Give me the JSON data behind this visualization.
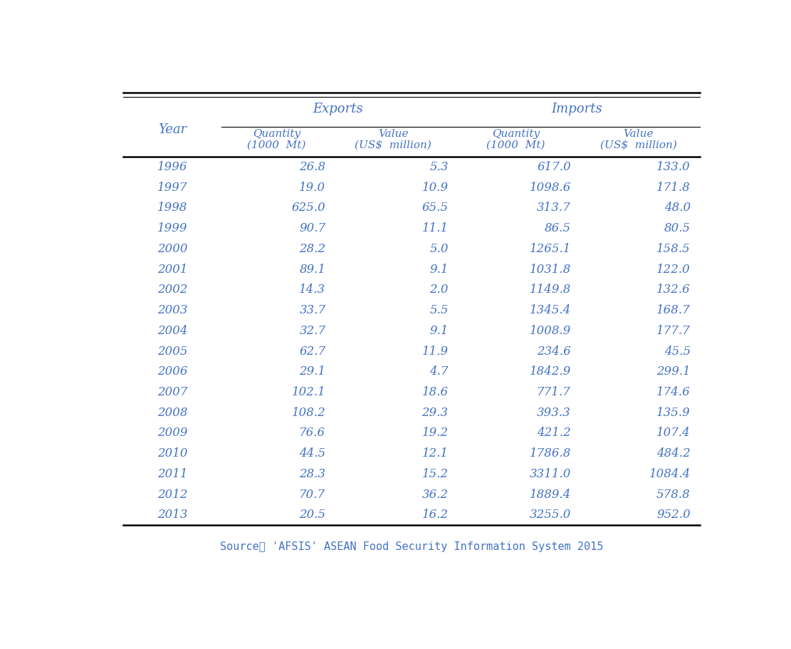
{
  "years": [
    1996,
    1997,
    1998,
    1999,
    2000,
    2001,
    2002,
    2003,
    2004,
    2005,
    2006,
    2007,
    2008,
    2009,
    2010,
    2011,
    2012,
    2013
  ],
  "export_qty": [
    26.8,
    19.0,
    625.0,
    90.7,
    28.2,
    89.1,
    14.3,
    33.7,
    32.7,
    62.7,
    29.1,
    102.1,
    108.2,
    76.6,
    44.5,
    28.3,
    70.7,
    20.5
  ],
  "export_val": [
    5.3,
    10.9,
    65.5,
    11.1,
    5.0,
    9.1,
    2.0,
    5.5,
    9.1,
    11.9,
    4.7,
    18.6,
    29.3,
    19.2,
    12.1,
    15.2,
    36.2,
    16.2
  ],
  "import_qty": [
    617.0,
    1098.6,
    313.7,
    86.5,
    1265.1,
    1031.8,
    1149.8,
    1345.4,
    1008.9,
    234.6,
    1842.9,
    771.7,
    393.3,
    421.2,
    1786.8,
    3311.0,
    1889.4,
    3255.0
  ],
  "import_val": [
    133.0,
    171.8,
    48.0,
    80.5,
    158.5,
    122.0,
    132.6,
    168.7,
    177.7,
    45.5,
    299.1,
    174.6,
    135.9,
    107.4,
    484.2,
    1084.4,
    578.8,
    952.0
  ],
  "col_header1": "Exports",
  "col_header2": "Imports",
  "sub_header1": "Quantity\n(1000  Mt)",
  "sub_header2": "Value\n(US$  million)",
  "sub_header3": "Quantity\n(1000  Mt)",
  "sub_header4": "Value\n(US$  million)",
  "year_label": "Year",
  "source_text": "Source： 'AFSIS' ASEAN Food Security Information System 2015",
  "text_color": "#4472C4",
  "bg_color": "#FFFFFF",
  "line_color": "#000000"
}
